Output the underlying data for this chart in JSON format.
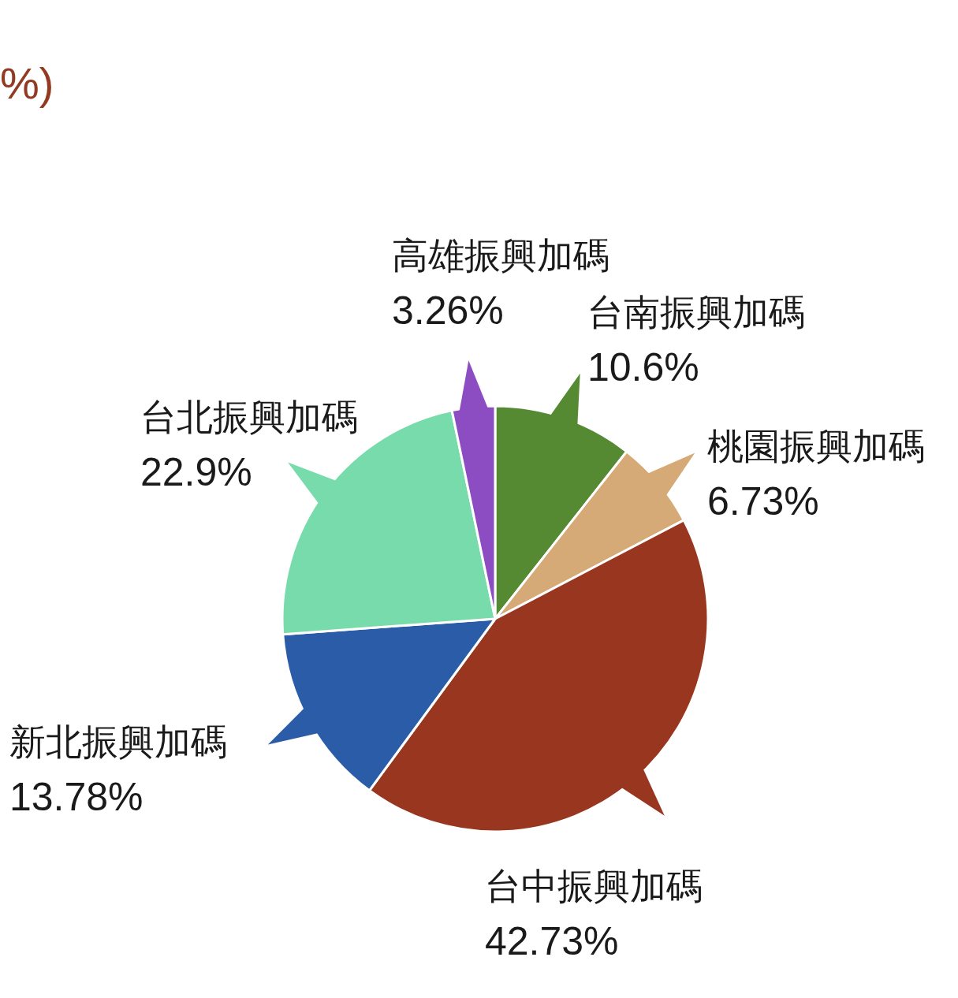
{
  "chart_data": {
    "type": "pie",
    "title": "%)",
    "categories": [
      "台南振興加碼",
      "桃園振興加碼",
      "台中振興加碼",
      "新北振興加碼",
      "台北振興加碼",
      "高雄振興加碼"
    ],
    "values": [
      10.6,
      6.73,
      42.73,
      13.78,
      22.9,
      3.26
    ],
    "colors": [
      "#558a33",
      "#d6aa76",
      "#993620",
      "#2a5ca8",
      "#78dbab",
      "#8c4cc2"
    ],
    "value_labels": [
      "10.6%",
      "6.73%",
      "42.73%",
      "13.78%",
      "22.9%",
      "3.26%"
    ]
  }
}
